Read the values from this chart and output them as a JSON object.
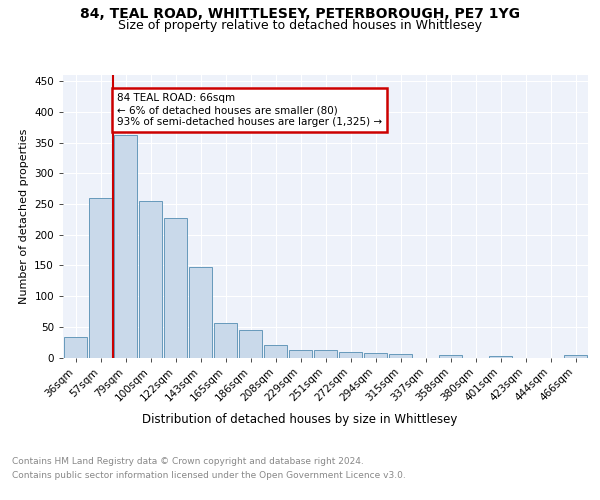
{
  "title": "84, TEAL ROAD, WHITTLESEY, PETERBOROUGH, PE7 1YG",
  "subtitle": "Size of property relative to detached houses in Whittlesey",
  "xlabel": "Distribution of detached houses by size in Whittlesey",
  "ylabel": "Number of detached properties",
  "categories": [
    "36sqm",
    "57sqm",
    "79sqm",
    "100sqm",
    "122sqm",
    "143sqm",
    "165sqm",
    "186sqm",
    "208sqm",
    "229sqm",
    "251sqm",
    "272sqm",
    "294sqm",
    "315sqm",
    "337sqm",
    "358sqm",
    "380sqm",
    "401sqm",
    "423sqm",
    "444sqm",
    "466sqm"
  ],
  "values": [
    33,
    260,
    362,
    255,
    227,
    148,
    56,
    44,
    20,
    12,
    12,
    9,
    8,
    6,
    0,
    4,
    0,
    3,
    0,
    0,
    4
  ],
  "bar_color": "#c9d9ea",
  "bar_edge_color": "#6699bb",
  "red_line_x": 1.5,
  "annotation_text": "84 TEAL ROAD: 66sqm\n← 6% of detached houses are smaller (80)\n93% of semi-detached houses are larger (1,325) →",
  "annotation_box_color": "#ffffff",
  "annotation_box_edge": "#cc0000",
  "red_line_color": "#cc0000",
  "footnote1": "Contains HM Land Registry data © Crown copyright and database right 2024.",
  "footnote2": "Contains public sector information licensed under the Open Government Licence v3.0.",
  "background_color": "#eef2fa",
  "grid_color": "#ffffff",
  "ylim": [
    0,
    460
  ],
  "yticks": [
    0,
    50,
    100,
    150,
    200,
    250,
    300,
    350,
    400,
    450
  ],
  "title_fontsize": 10,
  "subtitle_fontsize": 9,
  "ylabel_fontsize": 8,
  "xlabel_fontsize": 8.5,
  "tick_fontsize": 7.5,
  "footnote_fontsize": 6.5
}
